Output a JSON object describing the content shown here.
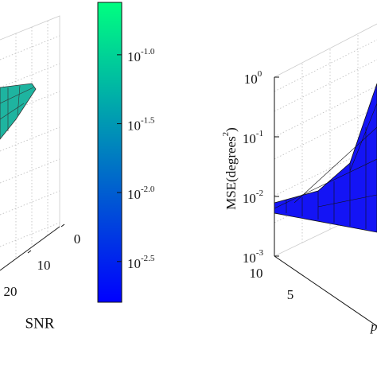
{
  "chart_data": [
    {
      "type": "surface",
      "xlabel": "SNR",
      "xticks": [
        0,
        10,
        20
      ]
    },
    {
      "type": "colorbar",
      "scale": "log",
      "zlim": [
        0.0016,
        0.24
      ],
      "zticks": [
        {
          "value": 0.1,
          "label": "10",
          "exponent": "-1.0"
        },
        {
          "value": 0.0316,
          "label": "10",
          "exponent": "-1.5"
        },
        {
          "value": 0.01,
          "label": "10",
          "exponent": "-2.0"
        },
        {
          "value": 0.00316,
          "label": "10",
          "exponent": "-2.5"
        }
      ],
      "colors": [
        "#0000ff",
        "#00ff80"
      ]
    },
    {
      "type": "surface",
      "scale": "log",
      "color": "#1414f5",
      "zlabel": {
        "text": "MSE(degrees",
        "exponent": "2",
        "close": ")"
      },
      "xlabel": "p",
      "zlim": [
        0.001,
        1
      ],
      "zticks": [
        {
          "value": 1,
          "label": "10",
          "exponent": "0"
        },
        {
          "value": 0.1,
          "label": "10",
          "exponent": "-1"
        },
        {
          "value": 0.01,
          "label": "10",
          "exponent": "-2"
        },
        {
          "value": 0.001,
          "label": "10",
          "exponent": "-3"
        }
      ],
      "xticks": [
        10,
        5
      ]
    }
  ]
}
